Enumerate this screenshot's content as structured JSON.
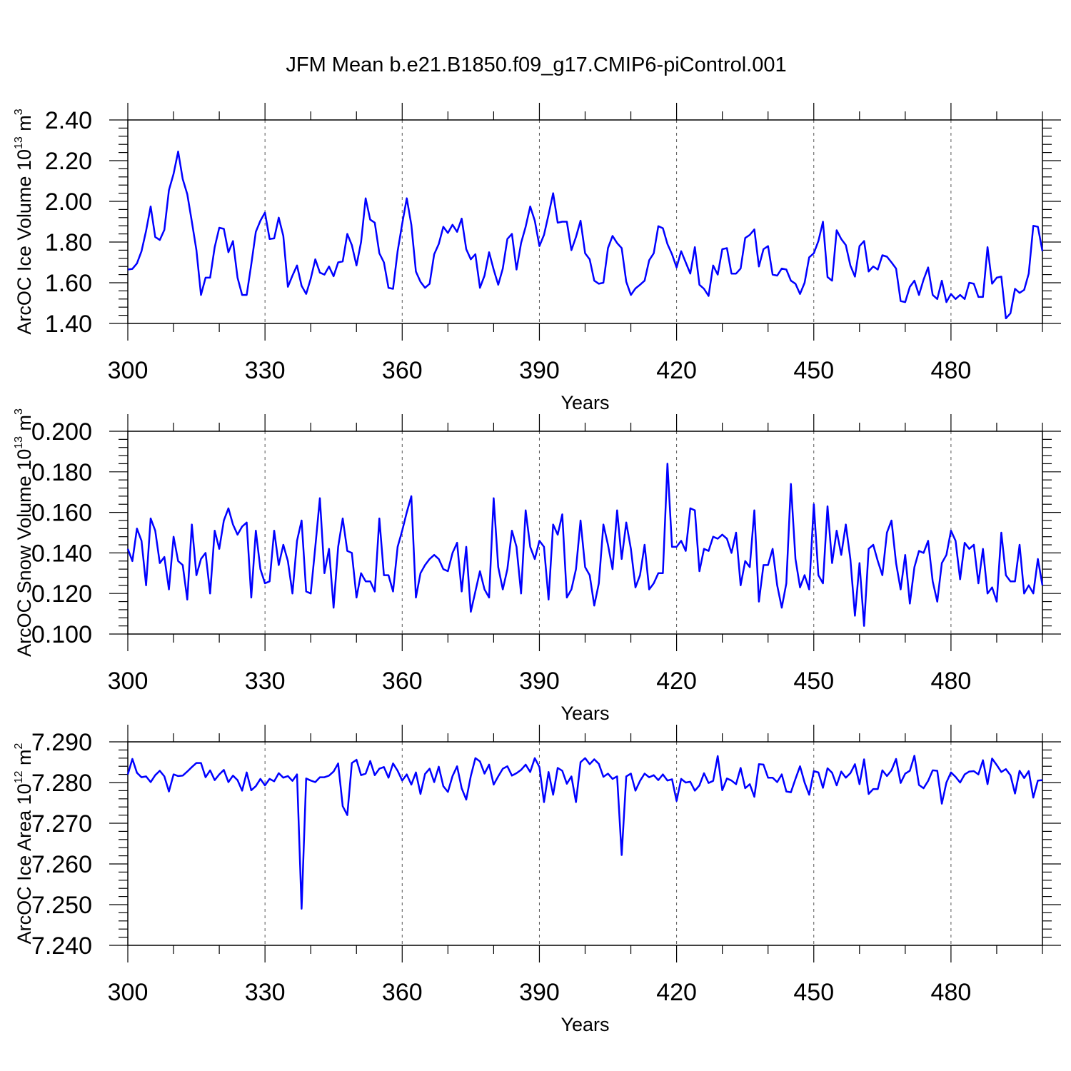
{
  "figure_title": "JFM Mean b.e21.B1850.f09_g17.CMIP6-piControl.001",
  "chart_data": [
    {
      "type": "line",
      "name": "ice-volume",
      "ylabel_main": "ArcOC Ice Volume 10",
      "ylabel_exp": "13",
      "ylabel_unit": " m",
      "ylabel_unit_exp": "3",
      "xlabel": "Years",
      "xlim": [
        300,
        500
      ],
      "ylim": [
        1.4,
        2.4
      ],
      "xticks": [
        "300",
        "330",
        "360",
        "390",
        "420",
        "450",
        "480"
      ],
      "yticks": [
        "1.40",
        "1.60",
        "1.80",
        "2.00",
        "2.20",
        "2.40"
      ],
      "series": [
        {
          "name": "ArcOC Ice Volume",
          "color": "#0000ff",
          "x_start": 300,
          "values": [
            1.665,
            1.668,
            1.695,
            1.755,
            1.855,
            1.975,
            1.825,
            1.81,
            1.86,
            2.055,
            2.135,
            2.245,
            2.11,
            2.035,
            1.9,
            1.76,
            1.54,
            1.625,
            1.625,
            1.775,
            1.87,
            1.865,
            1.75,
            1.805,
            1.625,
            1.54,
            1.54,
            1.69,
            1.85,
            1.905,
            1.945,
            1.815,
            1.818,
            1.92,
            1.83,
            1.58,
            1.635,
            1.685,
            1.585,
            1.545,
            1.62,
            1.715,
            1.65,
            1.64,
            1.68,
            1.632,
            1.7,
            1.705,
            1.84,
            1.785,
            1.685,
            1.8,
            2.015,
            1.91,
            1.895,
            1.745,
            1.7,
            1.575,
            1.57,
            1.755,
            1.89,
            2.015,
            1.885,
            1.655,
            1.605,
            1.575,
            1.595,
            1.74,
            1.79,
            1.875,
            1.845,
            1.885,
            1.85,
            1.915,
            1.765,
            1.715,
            1.74,
            1.575,
            1.635,
            1.75,
            1.665,
            1.59,
            1.67,
            1.815,
            1.84,
            1.665,
            1.795,
            1.875,
            1.975,
            1.905,
            1.78,
            1.835,
            1.935,
            2.04,
            1.895,
            1.9,
            1.9,
            1.76,
            1.825,
            1.905,
            1.745,
            1.715,
            1.61,
            1.595,
            1.6,
            1.77,
            1.83,
            1.795,
            1.77,
            1.605,
            1.54,
            1.572,
            1.59,
            1.61,
            1.71,
            1.745,
            1.878,
            1.868,
            1.79,
            1.74,
            1.675,
            1.755,
            1.7,
            1.645,
            1.775,
            1.59,
            1.57,
            1.535,
            1.685,
            1.64,
            1.765,
            1.77,
            1.645,
            1.645,
            1.67,
            1.82,
            1.835,
            1.862,
            1.68,
            1.765,
            1.78,
            1.64,
            1.635,
            1.67,
            1.665,
            1.61,
            1.595,
            1.545,
            1.6,
            1.725,
            1.745,
            1.805,
            1.9,
            1.628,
            1.61,
            1.858,
            1.815,
            1.785,
            1.685,
            1.63,
            1.78,
            1.805,
            1.655,
            1.68,
            1.665,
            1.735,
            1.728,
            1.7,
            1.67,
            1.51,
            1.505,
            1.58,
            1.61,
            1.54,
            1.615,
            1.675,
            1.54,
            1.52,
            1.61,
            1.505,
            1.545,
            1.52,
            1.54,
            1.52,
            1.6,
            1.595,
            1.53,
            1.53,
            1.775,
            1.595,
            1.625,
            1.63,
            1.425,
            1.45,
            1.57,
            1.55,
            1.565,
            1.645,
            1.88,
            1.875,
            1.755
          ]
        }
      ]
    },
    {
      "type": "line",
      "name": "snow-volume",
      "ylabel_main": "ArcOC Snow Volume 10",
      "ylabel_exp": "13",
      "ylabel_unit": " m",
      "ylabel_unit_exp": "3",
      "xlabel": "Years",
      "xlim": [
        300,
        500
      ],
      "ylim": [
        0.1,
        0.2
      ],
      "xticks": [
        "300",
        "330",
        "360",
        "390",
        "420",
        "450",
        "480"
      ],
      "yticks": [
        "0.100",
        "0.120",
        "0.140",
        "0.160",
        "0.180",
        "0.200"
      ],
      "series": [
        {
          "name": "ArcOC Snow Volume",
          "color": "#0000ff",
          "x_start": 300,
          "values": [
            0.142,
            0.136,
            0.152,
            0.146,
            0.124,
            0.157,
            0.151,
            0.135,
            0.138,
            0.122,
            0.148,
            0.136,
            0.134,
            0.117,
            0.154,
            0.129,
            0.137,
            0.14,
            0.12,
            0.151,
            0.142,
            0.156,
            0.162,
            0.154,
            0.149,
            0.153,
            0.155,
            0.118,
            0.151,
            0.132,
            0.125,
            0.126,
            0.151,
            0.134,
            0.144,
            0.136,
            0.12,
            0.146,
            0.156,
            0.121,
            0.12,
            0.143,
            0.167,
            0.13,
            0.142,
            0.113,
            0.143,
            0.157,
            0.141,
            0.14,
            0.118,
            0.13,
            0.126,
            0.126,
            0.121,
            0.157,
            0.129,
            0.129,
            0.121,
            0.143,
            0.151,
            0.16,
            0.168,
            0.118,
            0.13,
            0.134,
            0.137,
            0.139,
            0.137,
            0.132,
            0.131,
            0.14,
            0.145,
            0.121,
            0.143,
            0.111,
            0.121,
            0.131,
            0.122,
            0.118,
            0.167,
            0.133,
            0.122,
            0.132,
            0.151,
            0.143,
            0.12,
            0.161,
            0.143,
            0.137,
            0.146,
            0.143,
            0.117,
            0.154,
            0.149,
            0.159,
            0.118,
            0.122,
            0.132,
            0.156,
            0.133,
            0.129,
            0.114,
            0.125,
            0.154,
            0.144,
            0.132,
            0.161,
            0.137,
            0.155,
            0.142,
            0.123,
            0.129,
            0.144,
            0.122,
            0.125,
            0.13,
            0.13,
            0.184,
            0.143,
            0.143,
            0.146,
            0.141,
            0.162,
            0.161,
            0.131,
            0.142,
            0.141,
            0.148,
            0.147,
            0.149,
            0.147,
            0.14,
            0.15,
            0.124,
            0.136,
            0.133,
            0.161,
            0.116,
            0.134,
            0.134,
            0.142,
            0.124,
            0.113,
            0.125,
            0.174,
            0.137,
            0.123,
            0.129,
            0.122,
            0.164,
            0.129,
            0.125,
            0.163,
            0.135,
            0.151,
            0.139,
            0.154,
            0.137,
            0.109,
            0.135,
            0.104,
            0.142,
            0.144,
            0.136,
            0.129,
            0.15,
            0.156,
            0.135,
            0.122,
            0.139,
            0.115,
            0.133,
            0.141,
            0.14,
            0.146,
            0.126,
            0.116,
            0.135,
            0.139,
            0.151,
            0.146,
            0.127,
            0.145,
            0.142,
            0.144,
            0.125,
            0.142,
            0.12,
            0.123,
            0.116,
            0.15,
            0.129,
            0.126,
            0.126,
            0.144,
            0.12,
            0.124,
            0.12,
            0.137,
            0.124
          ]
        }
      ]
    },
    {
      "type": "line",
      "name": "ice-area",
      "ylabel_main": "ArcOC Ice Area 10",
      "ylabel_exp": "12",
      "ylabel_unit": " m",
      "ylabel_unit_exp": "2",
      "xlabel": "Years",
      "xlim": [
        300,
        500
      ],
      "ylim": [
        7.24,
        7.29
      ],
      "xticks": [
        "300",
        "330",
        "360",
        "390",
        "420",
        "450",
        "480"
      ],
      "yticks": [
        "7.240",
        "7.250",
        "7.260",
        "7.270",
        "7.280",
        "7.290"
      ],
      "series": [
        {
          "name": "ArcOC Ice Area",
          "color": "#0000ff",
          "x_start": 300,
          "values": [
            7.282,
            7.2858,
            7.2824,
            7.2813,
            7.2815,
            7.2801,
            7.2818,
            7.2829,
            7.2815,
            7.2778,
            7.282,
            7.2816,
            7.2817,
            7.2827,
            7.2838,
            7.2848,
            7.2848,
            7.2813,
            7.283,
            7.2806,
            7.282,
            7.2831,
            7.2801,
            7.2817,
            7.2806,
            7.278,
            7.2825,
            7.2781,
            7.2791,
            7.2809,
            7.2793,
            7.2809,
            7.2803,
            7.2823,
            7.2812,
            7.2816,
            7.2804,
            7.282,
            7.249,
            7.281,
            7.2805,
            7.2801,
            7.2813,
            7.2813,
            7.2817,
            7.2827,
            7.2847,
            7.2742,
            7.272,
            7.2848,
            7.2856,
            7.2818,
            7.2822,
            7.2853,
            7.2818,
            7.2834,
            7.2838,
            7.2812,
            7.2847,
            7.2829,
            7.2805,
            7.282,
            7.2795,
            7.2825,
            7.2772,
            7.2821,
            7.2834,
            7.2801,
            7.2839,
            7.2791,
            7.2777,
            7.2816,
            7.284,
            7.2786,
            7.2758,
            7.2816,
            7.286,
            7.2852,
            7.2822,
            7.2844,
            7.2795,
            7.2815,
            7.2834,
            7.284,
            7.2817,
            7.2823,
            7.2831,
            7.2844,
            7.2826,
            7.286,
            7.2838,
            7.2752,
            7.2826,
            7.277,
            7.2836,
            7.2829,
            7.2797,
            7.2815,
            7.2752,
            7.285,
            7.286,
            7.2845,
            7.2857,
            7.2846,
            7.2814,
            7.2822,
            7.2809,
            7.2815,
            7.2622,
            7.2815,
            7.2822,
            7.278,
            7.2804,
            7.2822,
            7.2813,
            7.2818,
            7.2806,
            7.282,
            7.2805,
            7.2808,
            7.2755,
            7.2809,
            7.28,
            7.2802,
            7.278,
            7.2793,
            7.2823,
            7.2799,
            7.2804,
            7.2865,
            7.2781,
            7.281,
            7.2805,
            7.2796,
            7.2836,
            7.2786,
            7.2796,
            7.2765,
            7.2845,
            7.2844,
            7.2812,
            7.2812,
            7.2801,
            7.282,
            7.2778,
            7.2776,
            7.2809,
            7.284,
            7.28,
            7.277,
            7.2828,
            7.2825,
            7.2787,
            7.2835,
            7.2824,
            7.2793,
            7.2827,
            7.2812,
            7.2823,
            7.2845,
            7.2796,
            7.2857,
            7.2772,
            7.2784,
            7.2784,
            7.283,
            7.2816,
            7.283,
            7.2858,
            7.2799,
            7.2822,
            7.2829,
            7.2866,
            7.2794,
            7.2786,
            7.2804,
            7.283,
            7.2829,
            7.2748,
            7.28,
            7.2825,
            7.2814,
            7.28,
            7.282,
            7.2827,
            7.2828,
            7.282,
            7.2855,
            7.2796,
            7.2859,
            7.2843,
            7.2826,
            7.2833,
            7.2818,
            7.2773,
            7.2829,
            7.2811,
            7.2828,
            7.2763,
            7.2805,
            7.2806
          ]
        }
      ]
    }
  ]
}
